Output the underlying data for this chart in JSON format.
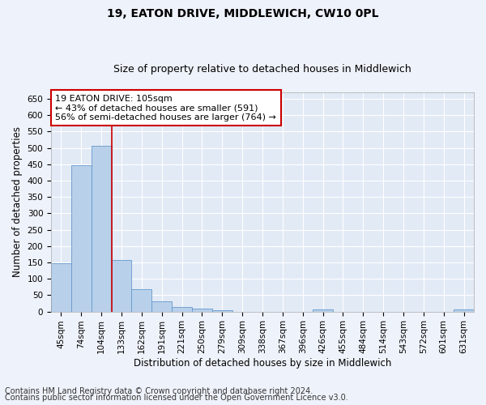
{
  "title": "19, EATON DRIVE, MIDDLEWICH, CW10 0PL",
  "subtitle": "Size of property relative to detached houses in Middlewich",
  "xlabel": "Distribution of detached houses by size in Middlewich",
  "ylabel": "Number of detached properties",
  "footer1": "Contains HM Land Registry data © Crown copyright and database right 2024.",
  "footer2": "Contains public sector information licensed under the Open Government Licence v3.0.",
  "categories": [
    "45sqm",
    "74sqm",
    "104sqm",
    "133sqm",
    "162sqm",
    "191sqm",
    "221sqm",
    "250sqm",
    "279sqm",
    "309sqm",
    "338sqm",
    "367sqm",
    "396sqm",
    "426sqm",
    "455sqm",
    "484sqm",
    "514sqm",
    "543sqm",
    "572sqm",
    "601sqm",
    "631sqm"
  ],
  "values": [
    148,
    448,
    507,
    158,
    68,
    31,
    14,
    9,
    5,
    0,
    0,
    0,
    0,
    6,
    0,
    0,
    0,
    0,
    0,
    0,
    6
  ],
  "bar_color": "#b8d0ea",
  "bar_edge_color": "#6699cc",
  "vline_x": 2.5,
  "vline_color": "#cc0000",
  "annotation_line1": "19 EATON DRIVE: 105sqm",
  "annotation_line2": "← 43% of detached houses are smaller (591)",
  "annotation_line3": "56% of semi-detached houses are larger (764) →",
  "annotation_box_color": "#ffffff",
  "annotation_box_edge": "#cc0000",
  "ylim": [
    0,
    670
  ],
  "yticks": [
    0,
    50,
    100,
    150,
    200,
    250,
    300,
    350,
    400,
    450,
    500,
    550,
    600,
    650
  ],
  "bg_color": "#eef2fa",
  "plot_bg_color": "#e2eaf6",
  "grid_color": "#ffffff",
  "title_fontsize": 10,
  "subtitle_fontsize": 9,
  "axis_label_fontsize": 8.5,
  "tick_fontsize": 7.5,
  "footer_fontsize": 7,
  "annotation_fontsize": 8
}
